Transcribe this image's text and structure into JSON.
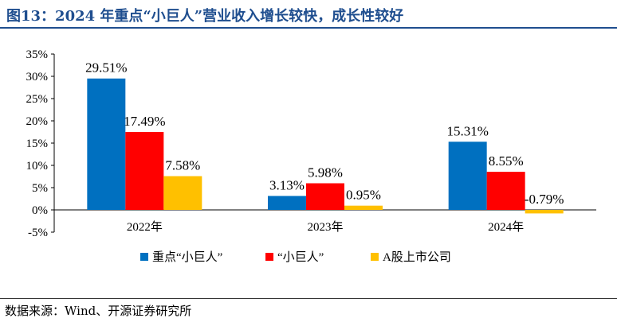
{
  "title": "图13：2024 年重点“小巨人”营业收入增长较快，成长性较好",
  "source": "数据来源：Wind、开源证券研究所",
  "chart_data": {
    "type": "bar",
    "categories": [
      "2022年",
      "2023年",
      "2024年"
    ],
    "series": [
      {
        "name": "重点“小巨人”",
        "values": [
          29.51,
          3.13,
          15.31
        ],
        "labels": [
          "29.51%",
          "3.13%",
          "15.31%"
        ],
        "color": "#0070c0"
      },
      {
        "name": "“小巨人”",
        "values": [
          17.49,
          5.98,
          8.55
        ],
        "labels": [
          "17.49%",
          "5.98%",
          "8.55%"
        ],
        "color": "#ff0000"
      },
      {
        "name": "A股上市公司",
        "values": [
          7.58,
          0.95,
          -0.79
        ],
        "labels": [
          "7.58%",
          "0.95%",
          "-0.79%"
        ],
        "color": "#ffc000"
      }
    ],
    "yticks": [
      "35%",
      "30%",
      "25%",
      "20%",
      "15%",
      "10%",
      "5%",
      "0%",
      "-5%"
    ],
    "ylim": [
      -5,
      35
    ],
    "legend": "bottom",
    "grid": false
  }
}
